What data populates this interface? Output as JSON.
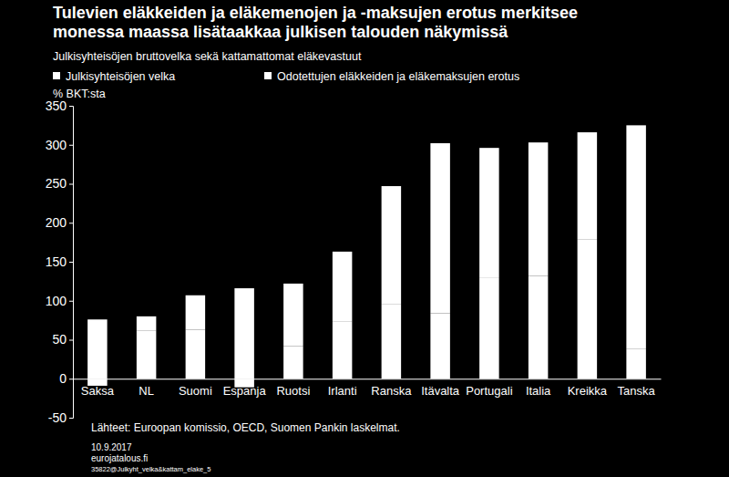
{
  "chart_data": {
    "type": "bar",
    "title": [
      "Tulevien eläkkeiden ja eläkemenojen ja -maksujen erotus merkitsee",
      "monessa maassa lisätaakkaa julkisen talouden näkymissä"
    ],
    "subtitle": "Julkisyhteisöjen bruttovelka sekä kattamattomat eläkevastuut",
    "y_label": "% BKT:sta",
    "categories": [
      "Saksa",
      "NL",
      "Suomi",
      "Espanja",
      "Ruotsi",
      "Irlanti",
      "Ranska",
      "Itävalta",
      "Portugali",
      "Italia",
      "Kreikka",
      "Tanska"
    ],
    "series": [
      {
        "name": "Julkisyhteisöjen velka",
        "color": "#ffffff",
        "values": [
          76,
          62,
          63,
          116,
          42,
          73,
          96,
          84,
          130,
          132,
          179,
          38
        ]
      },
      {
        "name": "Odotettujen eläkkeiden ja eläkemaksujen erotus",
        "color": "#ffffff",
        "values": [
          -9,
          18,
          44,
          -11,
          80,
          90,
          151,
          218,
          166,
          171,
          137,
          287
        ]
      }
    ],
    "stacked": true,
    "ylim": [
      -50,
      350
    ],
    "yticks": [
      -50,
      0,
      50,
      100,
      150,
      200,
      250,
      300,
      350
    ],
    "grid": false,
    "legend": "top-left",
    "source": "Lähteet: Euroopan komissio, OECD, Suomen Pankin laskelmat.",
    "date": "10.9.2017",
    "website": "eurojatalous.fi",
    "file_id": "35822@Julkyht_velka&kattam_elake_5"
  }
}
